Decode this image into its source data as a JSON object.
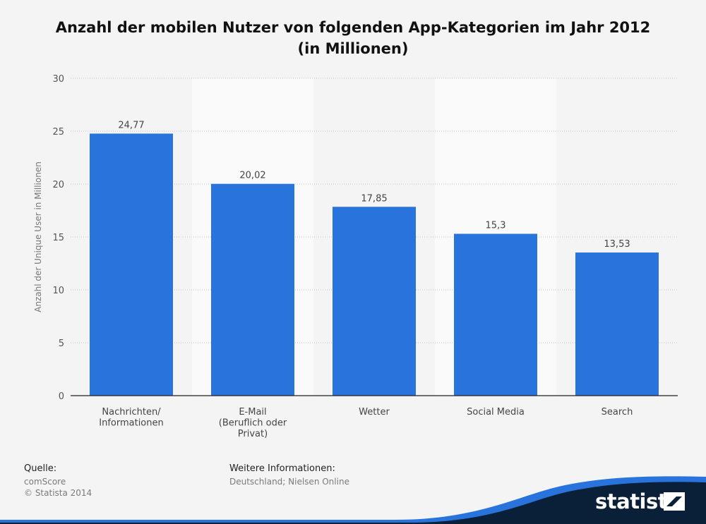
{
  "header": {
    "title_line1": "Anzahl der mobilen Nutzer von folgenden App-Kategorien im Jahr 2012",
    "title_line2": "(in Millionen)"
  },
  "chart_data": {
    "type": "bar",
    "categories": [
      [
        "Nachrichten/",
        "Informationen"
      ],
      [
        "E-Mail",
        "(Beruflich oder",
        "Privat)"
      ],
      [
        "Wetter"
      ],
      [
        "Social Media"
      ],
      [
        "Search"
      ]
    ],
    "values": [
      24.77,
      20.02,
      17.85,
      15.3,
      13.53
    ],
    "data_labels": [
      "24,77",
      "20,02",
      "17,85",
      "15,3",
      "13,53"
    ],
    "ylabel": "Anzahl der Unique User in Millionen",
    "ylim": [
      0,
      30
    ],
    "yticks": [
      0,
      5,
      10,
      15,
      20,
      25,
      30
    ],
    "grid": true,
    "bar_color": "#2874dc"
  },
  "footer": {
    "source_label": "Quelle:",
    "source_lines": [
      "comScore",
      "© Statista 2014"
    ],
    "info_label": "Weitere Informationen:",
    "info_text": "Deutschland; Nielsen Online"
  },
  "brand": {
    "name": "statista",
    "wave_color": "#2874dc",
    "dark_color": "#0a2038"
  }
}
